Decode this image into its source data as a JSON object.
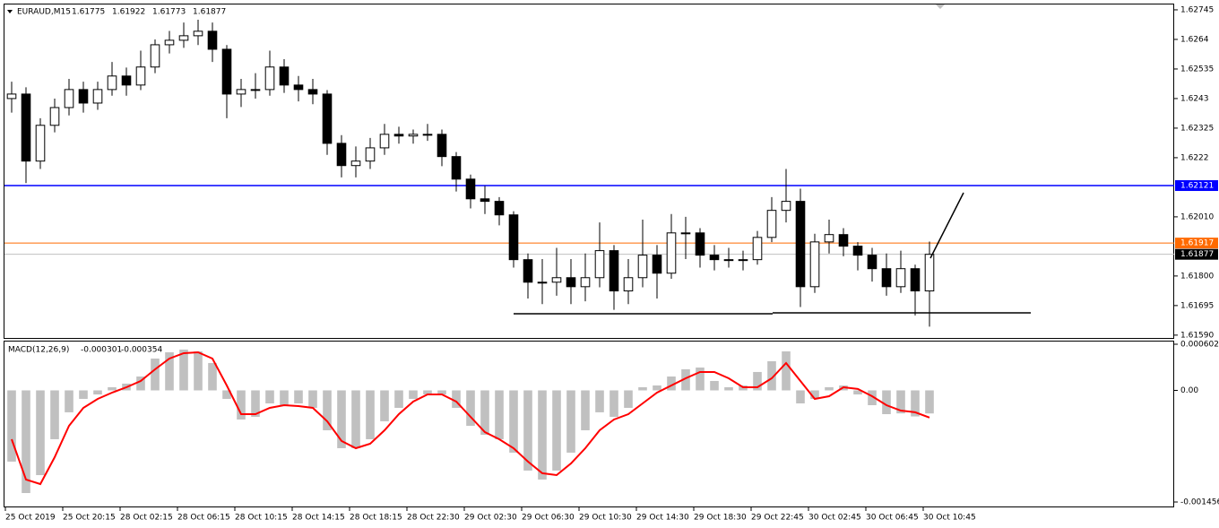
{
  "chart_data": [
    {
      "type": "candlestick",
      "title": "EURAUD,M15",
      "header_values": [
        1.61775,
        1.61922,
        1.61773,
        1.61877
      ],
      "up_color": "#ffffff",
      "down_color": "#000000",
      "line_color": "#000000",
      "open": [
        1.6243,
        1.62446,
        1.62208,
        1.62335,
        1.62398,
        1.62462,
        1.62414,
        1.62462,
        1.6251,
        1.62478,
        1.62542,
        1.62621,
        1.62637,
        1.62653,
        1.62669,
        1.62605,
        1.62446,
        1.62462,
        1.62462,
        1.62542,
        1.62478,
        1.62462,
        1.62446,
        1.62271,
        1.62192,
        1.62208,
        1.62255,
        1.62303,
        1.62297,
        1.62303,
        1.62303,
        1.62224,
        1.62144,
        1.62074,
        1.62065,
        1.62017,
        1.61858,
        1.61778,
        1.61778,
        1.61794,
        1.61762,
        1.61794,
        1.6189,
        1.61747,
        1.61794,
        1.61874,
        1.6181,
        1.61953,
        1.61953,
        1.61874,
        1.61858,
        1.61858,
        1.61858,
        1.61937,
        1.62033,
        1.62065,
        1.61762,
        1.61921,
        1.61947,
        1.61906,
        1.61874,
        1.61826,
        1.61762,
        1.61826,
        1.61747
      ],
      "high": [
        1.6249,
        1.6247,
        1.6236,
        1.6243,
        1.625,
        1.6249,
        1.6249,
        1.6256,
        1.6254,
        1.626,
        1.6264,
        1.6267,
        1.627,
        1.6271,
        1.627,
        1.6262,
        1.625,
        1.6252,
        1.626,
        1.6257,
        1.6251,
        1.625,
        1.6246,
        1.623,
        1.6226,
        1.6229,
        1.6234,
        1.6233,
        1.6232,
        1.6234,
        1.6232,
        1.6224,
        1.6216,
        1.6212,
        1.6208,
        1.6203,
        1.6188,
        1.6186,
        1.619,
        1.6186,
        1.6188,
        1.6199,
        1.6191,
        1.6186,
        1.62,
        1.6191,
        1.6202,
        1.6201,
        1.6197,
        1.6191,
        1.619,
        1.6189,
        1.6196,
        1.6208,
        1.6218,
        1.6211,
        1.6195,
        1.62,
        1.6197,
        1.6192,
        1.619,
        1.6188,
        1.6189,
        1.6184,
        1.61922
      ],
      "low": [
        1.6238,
        1.6213,
        1.6218,
        1.6231,
        1.6237,
        1.6238,
        1.6239,
        1.6244,
        1.6244,
        1.6246,
        1.6252,
        1.6259,
        1.6261,
        1.6262,
        1.6256,
        1.6236,
        1.624,
        1.6243,
        1.6244,
        1.6245,
        1.6242,
        1.6241,
        1.6223,
        1.6215,
        1.6215,
        1.6218,
        1.6223,
        1.6227,
        1.6227,
        1.6228,
        1.6219,
        1.621,
        1.6204,
        1.6202,
        1.6198,
        1.6183,
        1.6172,
        1.617,
        1.6173,
        1.617,
        1.6171,
        1.6176,
        1.6168,
        1.617,
        1.6176,
        1.6172,
        1.6179,
        1.6186,
        1.6183,
        1.6182,
        1.6183,
        1.6182,
        1.6184,
        1.6192,
        1.6199,
        1.6169,
        1.6174,
        1.6188,
        1.6187,
        1.6182,
        1.6178,
        1.6173,
        1.6174,
        1.6166,
        1.6162
      ],
      "close": [
        1.62446,
        1.62208,
        1.62335,
        1.62398,
        1.62462,
        1.62414,
        1.62462,
        1.6251,
        1.62478,
        1.62542,
        1.62621,
        1.62637,
        1.62653,
        1.62669,
        1.62605,
        1.62446,
        1.62462,
        1.62462,
        1.62542,
        1.62478,
        1.62462,
        1.62446,
        1.62271,
        1.62192,
        1.62208,
        1.62255,
        1.62303,
        1.62297,
        1.62303,
        1.62303,
        1.62224,
        1.62144,
        1.62074,
        1.62065,
        1.62017,
        1.61858,
        1.61778,
        1.61778,
        1.61794,
        1.61762,
        1.61794,
        1.6189,
        1.61747,
        1.61794,
        1.61874,
        1.6181,
        1.61953,
        1.61953,
        1.61874,
        1.61858,
        1.61858,
        1.61858,
        1.61937,
        1.62033,
        1.62065,
        1.61762,
        1.61921,
        1.61947,
        1.61906,
        1.61874,
        1.61826,
        1.61762,
        1.61826,
        1.61747,
        1.61877
      ],
      "ylim": [
        1.6158,
        1.62764
      ],
      "yticks": [
        1.62745,
        1.6264,
        1.62535,
        1.6243,
        1.62325,
        1.6222,
        {
          "value": 1.6201,
          "label": "1.62010"
        },
        {
          "value": 1.618,
          "label": "1.61800"
        },
        1.61695,
        {
          "value": 1.6159,
          "label": "1.61590"
        }
      ],
      "price_lines": [
        {
          "value": 1.62121,
          "color": "#0000ff"
        },
        {
          "value": 1.61917,
          "color": "#ff6a00"
        },
        {
          "value": 1.61877,
          "color": "#000000"
        }
      ],
      "xlim": [
        -0.5625,
        81.0625
      ],
      "xticks": [
        {
          "value": 0,
          "label": "25 Oct 2019"
        },
        {
          "value": 4,
          "label": "25 Oct 20:15"
        },
        {
          "value": 8,
          "label": "28 Oct 02:15"
        },
        {
          "value": 12,
          "label": "28 Oct 06:15"
        },
        {
          "value": 16,
          "label": "28 Oct 10:15"
        },
        {
          "value": 20,
          "label": "28 Oct 14:15"
        },
        {
          "value": 24,
          "label": "28 Oct 18:15"
        },
        {
          "value": 28,
          "label": "28 Oct 22:30"
        },
        {
          "value": 32,
          "label": "29 Oct 02:30"
        },
        {
          "value": 36,
          "label": "29 Oct 06:30"
        },
        {
          "value": 40,
          "label": "29 Oct 10:30"
        },
        {
          "value": 44,
          "label": "29 Oct 14:30"
        },
        {
          "value": 48,
          "label": "29 Oct 18:30"
        },
        {
          "value": 52,
          "label": "29 Oct 22:45"
        },
        {
          "value": 56,
          "label": "30 Oct 02:45"
        },
        {
          "value": 60,
          "label": "30 Oct 06:45"
        },
        {
          "value": 64,
          "label": "30 Oct 10:45"
        }
      ]
    },
    {
      "type": "macd",
      "title": "MACD(12,26,9)",
      "header_values": [
        -0.000301,
        -0.000354
      ],
      "series": [
        {
          "style": "histogram",
          "color": "#c0c0c0",
          "values": [
            -0.000929,
            -0.001339,
            -0.001105,
            -0.000637,
            -0.000286,
            -0.000111,
            -5.3e-05,
            4.1e-05,
            8.8e-05,
            0.000181,
            0.000415,
            0.000497,
            0.000532,
            0.000509,
            0.000357,
            -0.000111,
            -0.00038,
            -0.000345,
            -0.00017,
            -0.000193,
            -0.00017,
            -0.000228,
            -0.00052,
            -0.000754,
            -0.000754,
            -0.000637,
            -0.000403,
            -0.000228,
            -0.000111,
            -5.3e-05,
            -5.3e-05,
            -0.000228,
            -0.000462,
            -0.000579,
            -0.000637,
            -0.000812,
            -0.001046,
            -0.001163,
            -0.001046,
            -0.000812,
            -0.00052,
            -0.000286,
            -0.000345,
            -0.000228,
            4.1e-05,
            6.4e-05,
            0.000181,
            0.000275,
            0.000298,
            0.000123,
            4.1e-05,
            6.4e-05,
            0.00024,
            0.00038,
            0.000509,
            -0.00017,
            -0.000111,
            4.1e-05,
            6.4e-05,
            -5.3e-05,
            -0.000193,
            -0.00031,
            -0.0003,
            -0.00034,
            -0.000301
          ]
        },
        {
          "style": "line",
          "color": "#ff0000",
          "values": [
            -0.000637,
            -0.001163,
            -0.001222,
            -0.000871,
            -0.000462,
            -0.000228,
            -0.000111,
            -2.9e-05,
            4.1e-05,
            0.000123,
            0.000275,
            0.000415,
            0.000485,
            0.000497,
            0.000415,
            6.4e-05,
            -0.00031,
            -0.00031,
            -0.000228,
            -0.000193,
            -0.000205,
            -0.000228,
            -0.000403,
            -0.00066,
            -0.000754,
            -0.000696,
            -0.00052,
            -0.00031,
            -0.000146,
            -5.3e-05,
            -5.3e-05,
            -0.000146,
            -0.000345,
            -0.000544,
            -0.000637,
            -0.000754,
            -0.000929,
            -0.001081,
            -0.001105,
            -0.000953,
            -0.000754,
            -0.00052,
            -0.00038,
            -0.00031,
            -0.00017,
            -2.9e-05,
            6.4e-05,
            0.000158,
            0.00024,
            0.00024,
            0.000158,
            4.1e-05,
            4.1e-05,
            0.000158,
            0.000357,
            0.000123,
            -0.000111,
            -7.6e-05,
            4.1e-05,
            1.8e-05,
            -7.6e-05,
            -0.000193,
            -0.000263,
            -0.000286,
            -0.000354
          ]
        }
      ],
      "ylim": [
        -0.001456,
        0.000602
      ],
      "yticks": [
        0.000602,
        {
          "value": 0,
          "label": "0.00"
        },
        -0.001456
      ]
    }
  ]
}
